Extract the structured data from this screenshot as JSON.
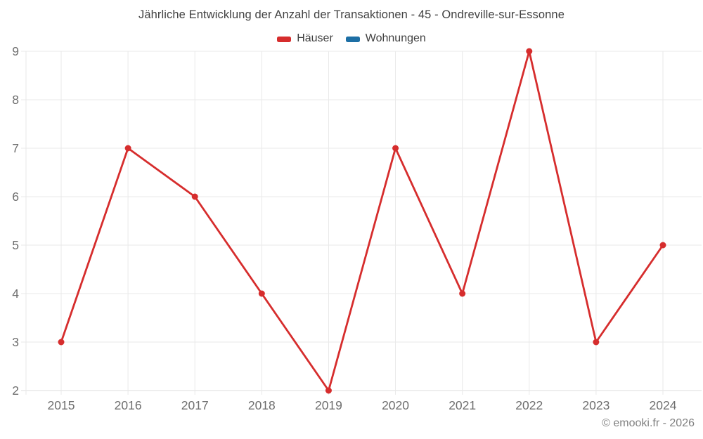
{
  "chart": {
    "title": "Jährliche Entwicklung der Anzahl der Transaktionen - 45 - Ondreville-sur-Essonne",
    "legend": [
      {
        "label": "Häuser",
        "color": "#d62d2d"
      },
      {
        "label": "Wohnungen",
        "color": "#1d6fa5"
      }
    ]
  },
  "chart_data": {
    "type": "line",
    "title": "Jährliche Entwicklung der Anzahl der Transaktionen - 45 - Ondreville-sur-Essonne",
    "categories": [
      "2015",
      "2016",
      "2017",
      "2018",
      "2019",
      "2020",
      "2021",
      "2022",
      "2023",
      "2024"
    ],
    "series": [
      {
        "name": "Häuser",
        "color": "#d62d2d",
        "values": [
          3,
          7,
          6,
          4,
          2,
          7,
          4,
          9,
          3,
          5
        ]
      }
    ],
    "legend_entries": [
      "Häuser",
      "Wohnungen"
    ],
    "legend_position": "top",
    "xlabel": "",
    "ylabel": "",
    "ylim": [
      2,
      9
    ],
    "y_ticks": [
      2,
      3,
      4,
      5,
      6,
      7,
      8,
      9
    ],
    "grid": true
  },
  "colors": {
    "grid": "#e9e9e9",
    "axis": "#dcdcdc",
    "tick_text": "#6e6e6e",
    "title_text": "#414141"
  },
  "footer": {
    "copyright": "© emooki.fr - 2026"
  }
}
